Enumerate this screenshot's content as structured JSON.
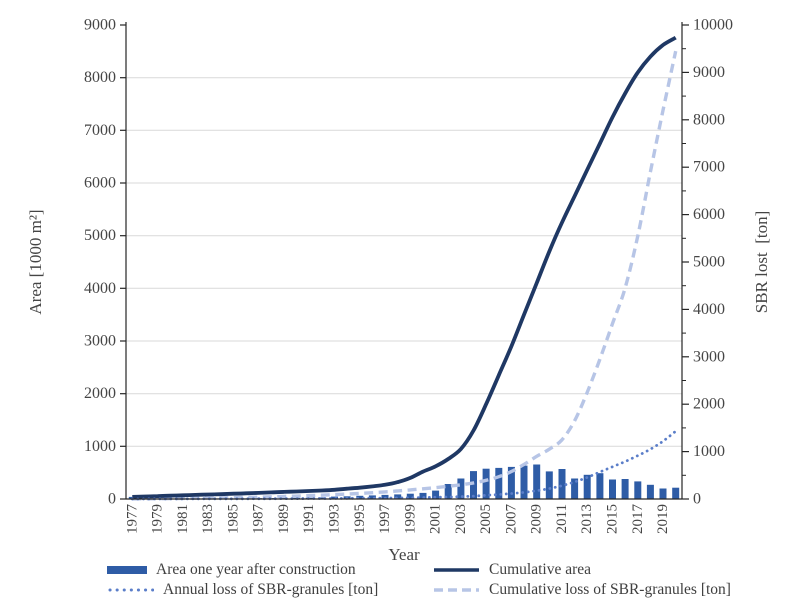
{
  "chart_data": {
    "type": "combo",
    "title": "",
    "x": {
      "label": "Year",
      "years": [
        1977,
        1978,
        1979,
        1980,
        1981,
        1982,
        1983,
        1984,
        1985,
        1986,
        1987,
        1988,
        1989,
        1990,
        1991,
        1992,
        1993,
        1994,
        1995,
        1996,
        1997,
        1998,
        1999,
        2000,
        2001,
        2002,
        2003,
        2004,
        2005,
        2006,
        2007,
        2008,
        2009,
        2010,
        2011,
        2012,
        2013,
        2014,
        2015,
        2016,
        2017,
        2018,
        2019,
        2020
      ],
      "tick_labels": [
        "1977",
        "1979",
        "1981",
        "1983",
        "1985",
        "1987",
        "1989",
        "1991",
        "1993",
        "1995",
        "1997",
        "1999",
        "2001",
        "2003",
        "2005",
        "2007",
        "2009",
        "2011",
        "2013",
        "2015",
        "2017",
        "2019"
      ]
    },
    "y_left": {
      "label": "Area [1000 m²]",
      "min": 0,
      "max": 9000,
      "tick_step": 1000,
      "ticks": [
        0,
        1000,
        2000,
        3000,
        4000,
        5000,
        6000,
        7000,
        8000,
        9000
      ]
    },
    "y_right": {
      "label": "SBR lost  [ton]",
      "min": 0,
      "max": 10000,
      "tick_step": 1000,
      "minor_tick_step": 500,
      "ticks": [
        0,
        1000,
        2000,
        3000,
        4000,
        5000,
        6000,
        7000,
        8000,
        9000,
        10000
      ]
    },
    "series": [
      {
        "name": "Area one year after construction",
        "type": "bar",
        "axis": "left",
        "color": "#2e5ca6",
        "values": [
          40,
          10,
          12,
          10,
          12,
          15,
          28,
          12,
          10,
          12,
          15,
          18,
          20,
          22,
          25,
          30,
          45,
          52,
          60,
          68,
          78,
          88,
          100,
          115,
          160,
          285,
          390,
          530,
          575,
          590,
          610,
          635,
          655,
          525,
          570,
          390,
          460,
          490,
          370,
          380,
          335,
          270,
          200,
          215
        ]
      },
      {
        "name": "Cumulative area",
        "type": "line",
        "style": "solid",
        "axis": "left",
        "color": "#1f3864",
        "values": [
          40,
          48,
          56,
          63,
          70,
          78,
          85,
          92,
          100,
          108,
          116,
          125,
          134,
          143,
          152,
          162,
          175,
          195,
          215,
          240,
          270,
          320,
          400,
          520,
          620,
          760,
          950,
          1300,
          1800,
          2350,
          2900,
          3500,
          4100,
          4700,
          5250,
          5750,
          6250,
          6750,
          7250,
          7700,
          8100,
          8400,
          8620,
          8760
        ]
      },
      {
        "name": "Annual loss of SBR-granules [ton]",
        "type": "line",
        "style": "dotted",
        "axis": "right",
        "color": "#5b7ec9",
        "values": [
          1,
          1,
          2,
          2,
          3,
          3,
          4,
          4,
          5,
          5,
          6,
          7,
          8,
          9,
          10,
          11,
          12,
          14,
          16,
          18,
          20,
          23,
          26,
          30,
          35,
          42,
          50,
          62,
          78,
          95,
          115,
          140,
          175,
          220,
          280,
          360,
          455,
          570,
          680,
          790,
          915,
          1050,
          1220,
          1430
        ]
      },
      {
        "name": "Cumulative loss of SBR-granules [ton]",
        "type": "line",
        "style": "dashed",
        "axis": "right",
        "color": "#b7c5e6",
        "values": [
          2,
          4,
          6,
          9,
          12,
          15,
          19,
          23,
          28,
          33,
          39,
          46,
          54,
          62,
          71,
          81,
          92,
          104,
          118,
          133,
          150,
          170,
          192,
          215,
          240,
          268,
          300,
          340,
          395,
          470,
          580,
          730,
          900,
          1050,
          1250,
          1650,
          2250,
          2950,
          3700,
          4450,
          5550,
          6900,
          8200,
          9450
        ]
      }
    ],
    "grid": {
      "show": true,
      "color": "#d9d9d9",
      "lines_at": [
        1000,
        2000,
        3000,
        4000,
        5000,
        6000,
        7000,
        8000
      ]
    },
    "axis_color": "#262626",
    "text_color": "#454545",
    "legend": {
      "position": "bottom",
      "columns": 2
    }
  }
}
